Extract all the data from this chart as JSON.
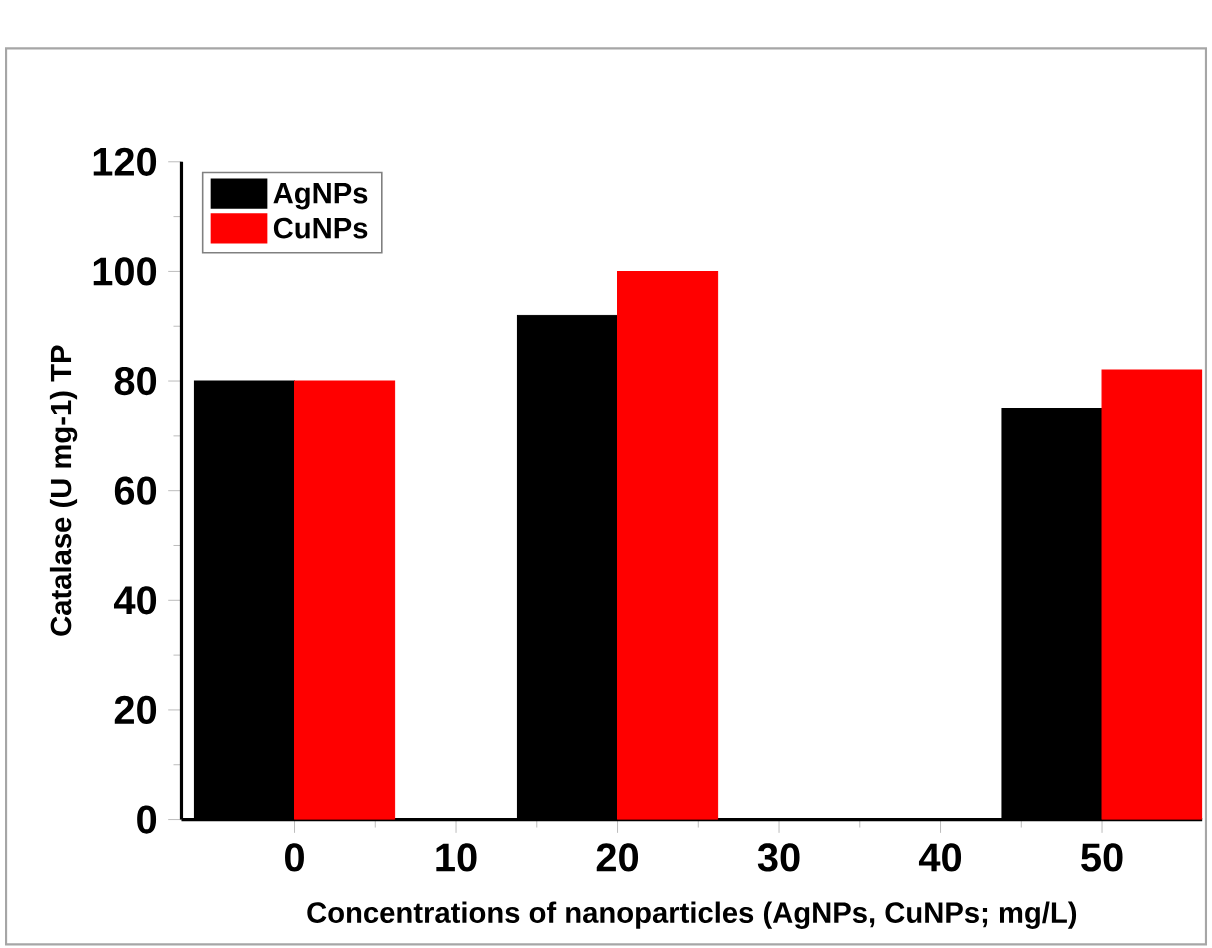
{
  "chart_data": {
    "type": "bar",
    "xlabel": "Concentrations of nanoparticles (AgNPs, CuNPs; mg/L)",
    "ylabel": "Catalase (U mg-1) TP",
    "x": [
      0,
      20,
      50
    ],
    "series": [
      {
        "name": "AgNPs",
        "color": "#000000",
        "values": [
          80,
          92,
          75
        ]
      },
      {
        "name": "CuNPs",
        "color": "#ff0000",
        "values": [
          80,
          100,
          82
        ]
      }
    ],
    "xlim": [
      -7,
      56.2
    ],
    "xticks": [
      0,
      10,
      20,
      30,
      40,
      50
    ],
    "ylim": [
      0,
      120
    ],
    "yticks": [
      0,
      20,
      40,
      60,
      80,
      100,
      120
    ],
    "legend": "top left",
    "grid": false
  }
}
